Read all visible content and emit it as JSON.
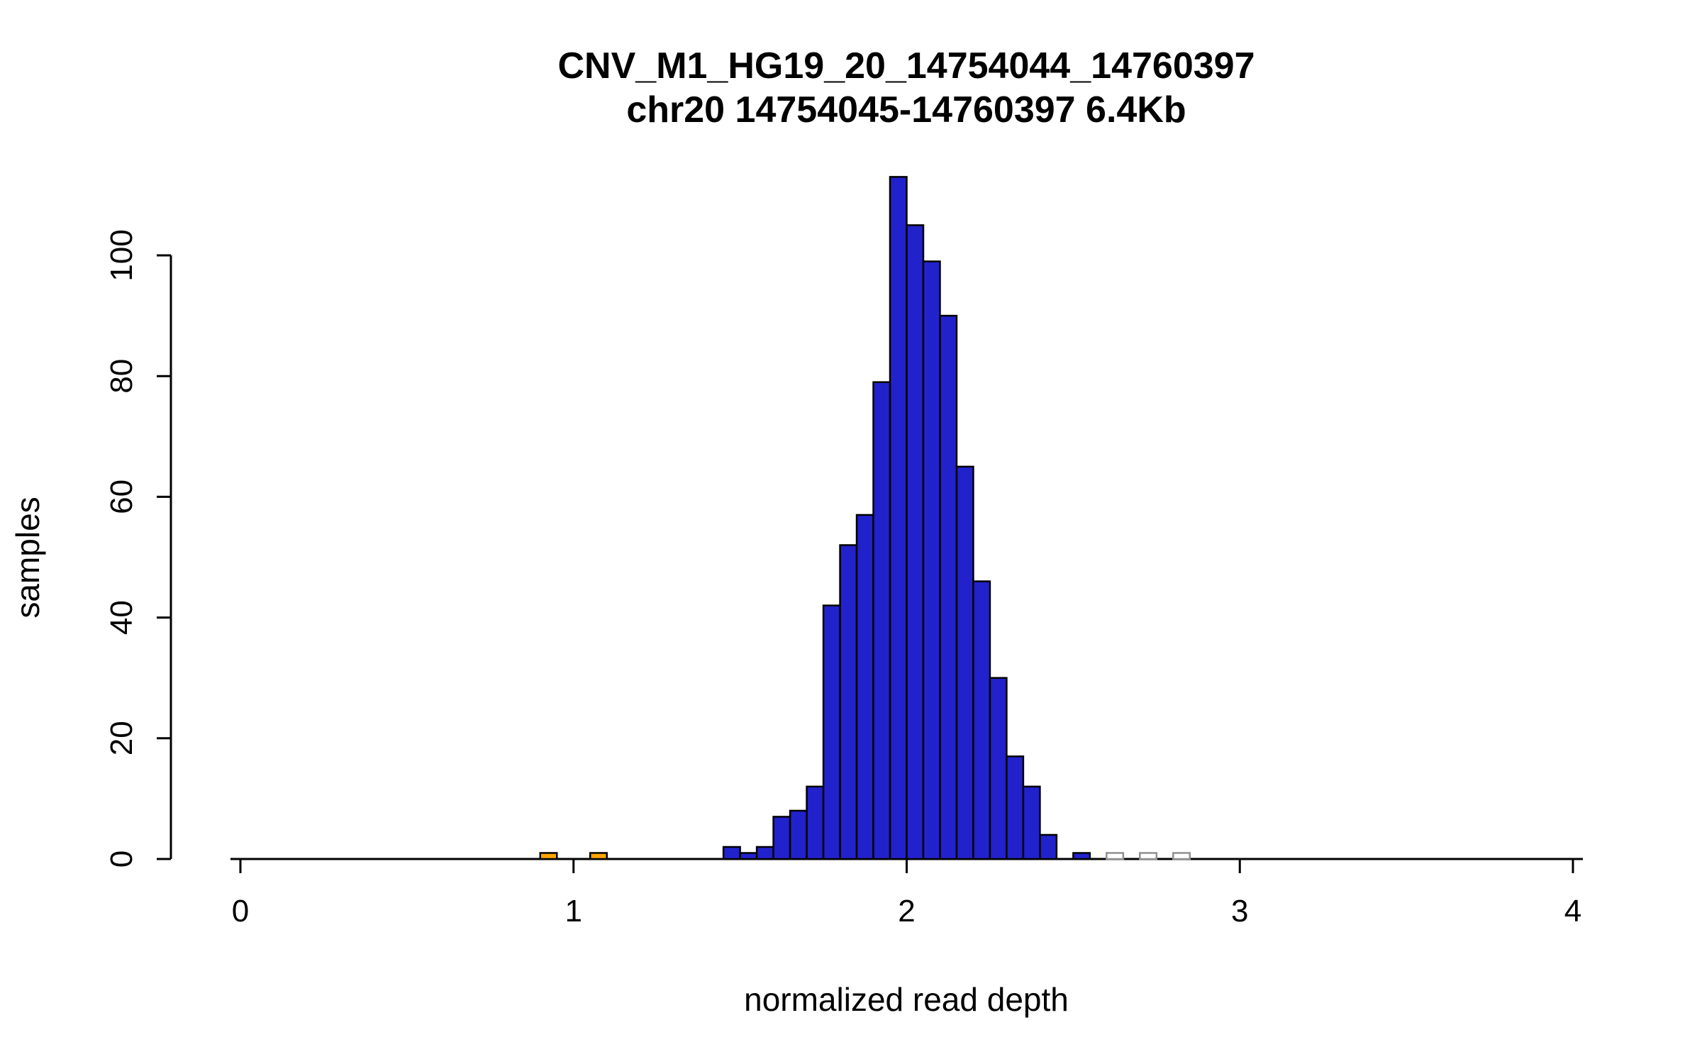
{
  "chart_data": {
    "type": "bar",
    "title": "CNV_M1_HG19_20_14754044_14760397",
    "subtitle": "chr20 14754045-14760397 6.4Kb",
    "xlabel": "normalized read depth",
    "ylabel": "samples",
    "xlim": [
      0,
      4
    ],
    "ylim": [
      0,
      113
    ],
    "x_ticks": [
      0,
      1,
      2,
      3,
      4
    ],
    "y_ticks": [
      0,
      20,
      40,
      60,
      80,
      100
    ],
    "bin_width": 0.05,
    "grid": false,
    "legend": "none",
    "palette": {
      "blue": "#2222CC",
      "orange": "#FFA500",
      "white": "#FFFFFF",
      "axis": "#000000"
    },
    "bars": [
      {
        "x": 0.9,
        "count": 1,
        "fill": "#FFA500",
        "stroke": "#000000"
      },
      {
        "x": 1.05,
        "count": 1,
        "fill": "#FFA500",
        "stroke": "#000000"
      },
      {
        "x": 1.45,
        "count": 2,
        "fill": "#2222CC",
        "stroke": "#000000"
      },
      {
        "x": 1.5,
        "count": 1,
        "fill": "#2222CC",
        "stroke": "#000000"
      },
      {
        "x": 1.55,
        "count": 2,
        "fill": "#2222CC",
        "stroke": "#000000"
      },
      {
        "x": 1.6,
        "count": 7,
        "fill": "#2222CC",
        "stroke": "#000000"
      },
      {
        "x": 1.65,
        "count": 8,
        "fill": "#2222CC",
        "stroke": "#000000"
      },
      {
        "x": 1.7,
        "count": 12,
        "fill": "#2222CC",
        "stroke": "#000000"
      },
      {
        "x": 1.75,
        "count": 42,
        "fill": "#2222CC",
        "stroke": "#000000"
      },
      {
        "x": 1.8,
        "count": 52,
        "fill": "#2222CC",
        "stroke": "#000000"
      },
      {
        "x": 1.85,
        "count": 57,
        "fill": "#2222CC",
        "stroke": "#000000"
      },
      {
        "x": 1.9,
        "count": 79,
        "fill": "#2222CC",
        "stroke": "#000000"
      },
      {
        "x": 1.95,
        "count": 113,
        "fill": "#2222CC",
        "stroke": "#000000"
      },
      {
        "x": 2.0,
        "count": 105,
        "fill": "#2222CC",
        "stroke": "#000000"
      },
      {
        "x": 2.05,
        "count": 99,
        "fill": "#2222CC",
        "stroke": "#000000"
      },
      {
        "x": 2.1,
        "count": 90,
        "fill": "#2222CC",
        "stroke": "#000000"
      },
      {
        "x": 2.15,
        "count": 65,
        "fill": "#2222CC",
        "stroke": "#000000"
      },
      {
        "x": 2.2,
        "count": 46,
        "fill": "#2222CC",
        "stroke": "#000000"
      },
      {
        "x": 2.25,
        "count": 30,
        "fill": "#2222CC",
        "stroke": "#000000"
      },
      {
        "x": 2.3,
        "count": 17,
        "fill": "#2222CC",
        "stroke": "#000000"
      },
      {
        "x": 2.35,
        "count": 12,
        "fill": "#2222CC",
        "stroke": "#000000"
      },
      {
        "x": 2.4,
        "count": 4,
        "fill": "#2222CC",
        "stroke": "#000000"
      },
      {
        "x": 2.5,
        "count": 1,
        "fill": "#2222CC",
        "stroke": "#000000"
      },
      {
        "x": 2.6,
        "count": 1,
        "fill": "#FFFFFF",
        "stroke": "#909090"
      },
      {
        "x": 2.7,
        "count": 1,
        "fill": "#FFFFFF",
        "stroke": "#909090"
      },
      {
        "x": 2.8,
        "count": 1,
        "fill": "#FFFFFF",
        "stroke": "#909090"
      }
    ]
  }
}
